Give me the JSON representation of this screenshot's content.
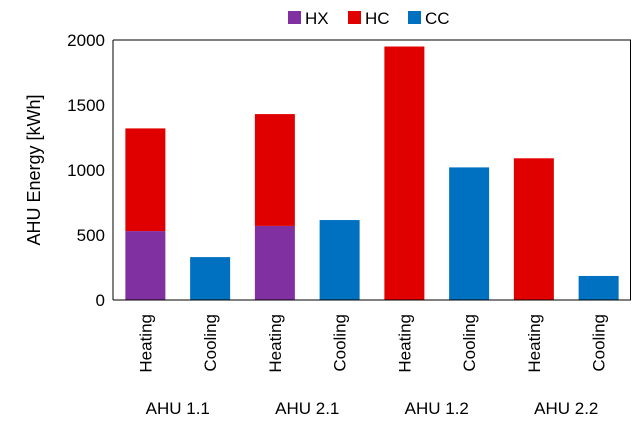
{
  "chart_data": {
    "type": "bar",
    "stacked": true,
    "ylabel": "AHU Energy [kWh]",
    "ylim": [
      0,
      2000
    ],
    "yticks": [
      0,
      500,
      1000,
      1500,
      2000
    ],
    "grid": false,
    "legend_position": "top",
    "bars": [
      {
        "label": "Heating",
        "group": "AHU 1.1"
      },
      {
        "label": "Cooling",
        "group": "AHU 1.1"
      },
      {
        "label": "Heating",
        "group": "AHU 2.1"
      },
      {
        "label": "Cooling",
        "group": "AHU 2.1"
      },
      {
        "label": "Heating",
        "group": "AHU 1.2"
      },
      {
        "label": "Cooling",
        "group": "AHU 1.2"
      },
      {
        "label": "Heating",
        "group": "AHU 2.2"
      },
      {
        "label": "Cooling",
        "group": "AHU 2.2"
      }
    ],
    "groups": [
      "AHU 1.1",
      "AHU 2.1",
      "AHU 1.2",
      "AHU 2.2"
    ],
    "series": [
      {
        "name": "HX",
        "color": "#8030a0",
        "values": [
          530,
          0,
          570,
          0,
          0,
          0,
          0,
          0
        ]
      },
      {
        "name": "HC",
        "color": "#e00000",
        "values": [
          790,
          0,
          860,
          0,
          1950,
          0,
          1090,
          0
        ]
      },
      {
        "name": "CC",
        "color": "#0070c0",
        "values": [
          0,
          330,
          0,
          615,
          0,
          1020,
          0,
          185
        ]
      }
    ]
  }
}
